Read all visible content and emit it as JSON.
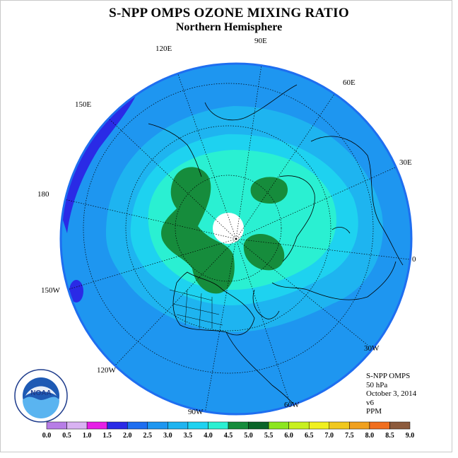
{
  "title": "S-NPP OMPS OZONE MIXING RATIO",
  "subtitle": "Northern Hemisphere",
  "longitude_labels": [
    "90E",
    "60E",
    "30E",
    "0",
    "30W",
    "60W",
    "90W",
    "120W",
    "150W",
    "180",
    "150E",
    "120E"
  ],
  "info": {
    "instrument": "S-NPP OMPS",
    "level": "50 hPa",
    "date": "October 3, 2014",
    "version": "v6",
    "units": "PPM"
  },
  "logo_text": "NOAA",
  "colorbar": {
    "ticks": [
      "0.0",
      "0.5",
      "1.0",
      "1.5",
      "2.0",
      "2.5",
      "3.0",
      "3.5",
      "4.0",
      "4.5",
      "5.0",
      "5.5",
      "6.0",
      "6.5",
      "7.0",
      "7.5",
      "8.0",
      "8.5",
      "9.0"
    ],
    "colors": [
      "#b77de6",
      "#d9b2f2",
      "#e61ee6",
      "#2a2ae6",
      "#1e6ef0",
      "#1e96f0",
      "#1eb4f0",
      "#1ed2f0",
      "#2af0d2",
      "#168c3c",
      "#0a6428",
      "#8ce61e",
      "#c8f01e",
      "#f0f01e",
      "#f0c81e",
      "#f0a01e",
      "#f06e1e",
      "#e61e1e",
      "#8c5a3c"
    ]
  },
  "map_colors": {
    "ocean_level_2_5": "#1e96f0",
    "level_2_0": "#1e6ef0",
    "level_3_0": "#1eb4f0",
    "level_3_5": "#1ed2f0",
    "level_4_0": "#2af0d2",
    "level_4_5": "#168c3c",
    "level_1_5": "#2a2ae6",
    "pole": "#ffffff"
  }
}
